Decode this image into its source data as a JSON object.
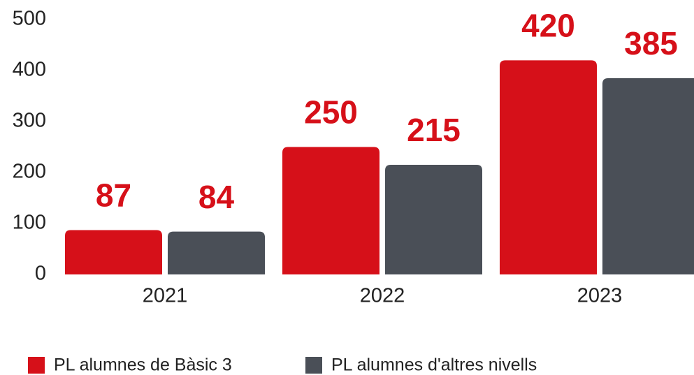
{
  "chart_data": {
    "type": "bar",
    "categories": [
      "2021",
      "2022",
      "2023"
    ],
    "series": [
      {
        "name": "PL alumnes de Bàsic 3",
        "color": "#d61019",
        "values": [
          87,
          250,
          420
        ]
      },
      {
        "name": "PL alumnes d'altres nivells",
        "color": "#4a4f57",
        "values": [
          84,
          215,
          385
        ]
      }
    ],
    "value_label_color": "#d61019",
    "ylim": [
      0,
      500
    ],
    "yticks": [
      0,
      100,
      200,
      300,
      400,
      500
    ],
    "grid": false,
    "legend": "bottom-left"
  }
}
